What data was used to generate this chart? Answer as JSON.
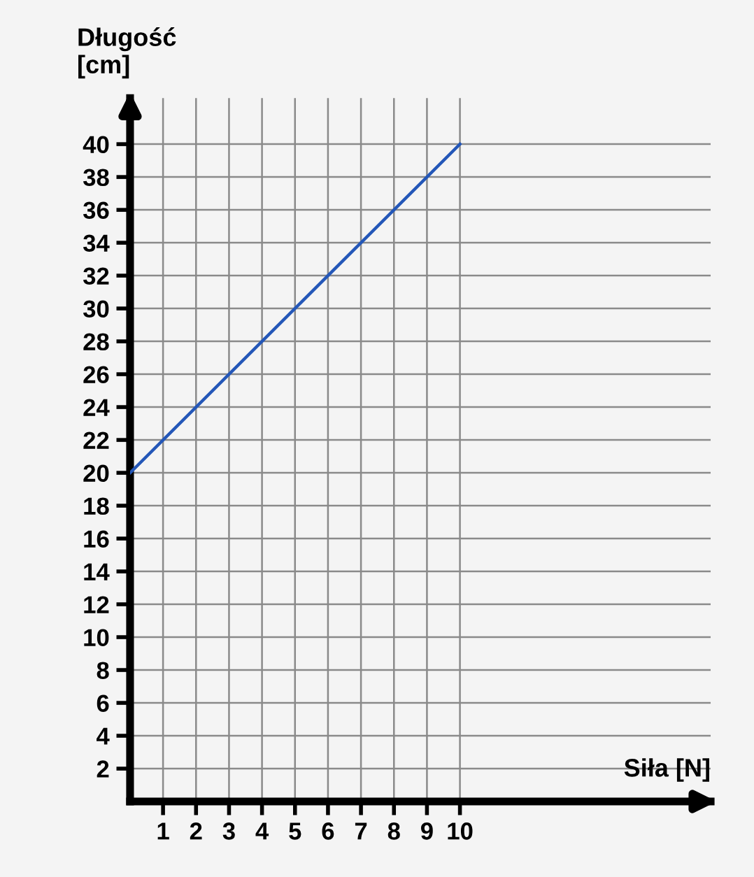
{
  "chart_data": {
    "type": "line",
    "xlabel": "Siła [N]",
    "ylabel": "Długość\n[cm]",
    "x": [
      0,
      10
    ],
    "series": [
      {
        "color": "#2457b8",
        "values": [
          20,
          40
        ]
      }
    ],
    "xlim": [
      0,
      17.6
    ],
    "ylim": [
      0,
      42.8
    ],
    "xticks": [
      1,
      2,
      3,
      4,
      5,
      6,
      7,
      8,
      9,
      10
    ],
    "yticks": [
      2,
      4,
      6,
      8,
      10,
      12,
      14,
      16,
      18,
      20,
      22,
      24,
      26,
      28,
      30,
      32,
      34,
      36,
      38,
      40
    ],
    "grid": true,
    "marker": "none",
    "line_style": "solid"
  }
}
